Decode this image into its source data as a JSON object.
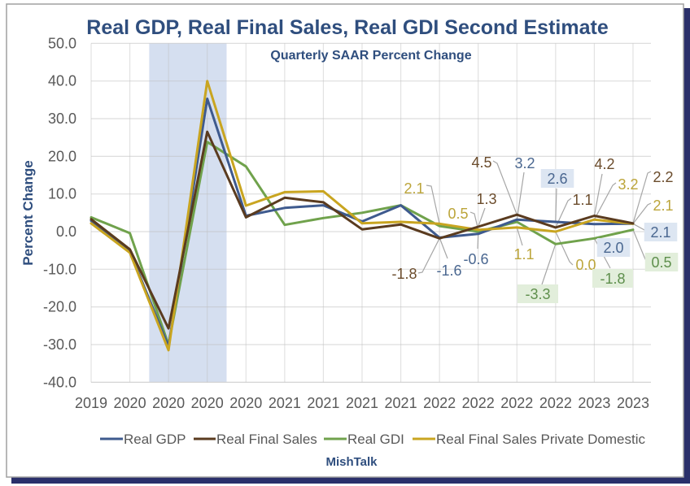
{
  "chart_data": {
    "type": "line",
    "title": "Real GDP, Real Final Sales, Real GDI Second Estimate",
    "subtitle": "Quarterly SAAR Percent Change",
    "xlabel": "",
    "ylabel": "Percent Change",
    "ylim": [
      -40,
      50
    ],
    "y_ticks": [
      50,
      40,
      30,
      20,
      10,
      0,
      -10,
      -20,
      -30,
      -40
    ],
    "y_tick_labels": [
      "50.0",
      "40.0",
      "30.0",
      "20.0",
      "10.0",
      "0.0",
      "-10.0",
      "-20.0",
      "-30.0",
      "-40.0"
    ],
    "grid": true,
    "legend_position": "bottom",
    "categories": [
      "2019",
      "2020",
      "2020",
      "2020",
      "2020",
      "2021",
      "2021",
      "2021",
      "2021",
      "2022",
      "2022",
      "2022",
      "2022",
      "2023",
      "2023"
    ],
    "shaded_region": {
      "from_index": 1.5,
      "to_index": 3.5,
      "color": "#d5dff0"
    },
    "series": [
      {
        "name": "Real GDP",
        "color": "#3e5a8e",
        "label_color": "#4a6790",
        "label_box": "#dde6f2",
        "values": [
          2.9,
          -5.3,
          -30.5,
          35.3,
          4.2,
          6.3,
          7.0,
          2.7,
          7.0,
          -1.6,
          -0.6,
          3.2,
          2.6,
          2.0,
          2.1
        ]
      },
      {
        "name": "Real Final Sales",
        "color": "#5a3b1f",
        "label_color": "#6b4c2c",
        "label_box": "#f1e9df",
        "values": [
          3.3,
          -4.7,
          -25.7,
          26.5,
          3.8,
          9.0,
          7.8,
          0.6,
          1.9,
          -1.8,
          1.3,
          4.5,
          1.1,
          4.2,
          2.2
        ]
      },
      {
        "name": "Real GDI",
        "color": "#70a24c",
        "label_color": "#5e8f4c",
        "label_box": "#e2eedb",
        "values": [
          3.8,
          -0.4,
          -30.0,
          23.8,
          17.3,
          1.8,
          3.6,
          5.0,
          7.0,
          1.5,
          0.0,
          2.6,
          -3.3,
          -1.8,
          0.5
        ]
      },
      {
        "name": "Real Final Sales Private Domestic",
        "color": "#c9a520",
        "label_color": "#bca53a",
        "label_box": "#f6f1d8",
        "values": [
          2.2,
          -5.6,
          -31.5,
          40.0,
          6.9,
          10.5,
          10.7,
          2.2,
          2.6,
          2.1,
          0.5,
          1.1,
          0.0,
          3.2,
          2.1
        ]
      }
    ],
    "data_labels": [
      {
        "series": 3,
        "index": 9,
        "text": "2.1"
      },
      {
        "series": 1,
        "index": 9,
        "text": "-1.8"
      },
      {
        "series": 0,
        "index": 9,
        "text": "-1.6"
      },
      {
        "series": 3,
        "index": 10,
        "text": "0.5"
      },
      {
        "series": 1,
        "index": 10,
        "text": "1.3"
      },
      {
        "series": 0,
        "index": 10,
        "text": "-0.6"
      },
      {
        "series": 1,
        "index": 11,
        "text": "4.5"
      },
      {
        "series": 0,
        "index": 11,
        "text": "3.2"
      },
      {
        "series": 3,
        "index": 11,
        "text": "1.1"
      },
      {
        "series": 0,
        "index": 12,
        "text": "2.6"
      },
      {
        "series": 1,
        "index": 12,
        "text": "1.1"
      },
      {
        "series": 3,
        "index": 12,
        "text": "0.0"
      },
      {
        "series": 2,
        "index": 12,
        "text": "-3.3"
      },
      {
        "series": 1,
        "index": 13,
        "text": "4.2"
      },
      {
        "series": 3,
        "index": 13,
        "text": "3.2"
      },
      {
        "series": 0,
        "index": 13,
        "text": "2.0"
      },
      {
        "series": 2,
        "index": 13,
        "text": "-1.8"
      },
      {
        "series": 1,
        "index": 14,
        "text": "2.2"
      },
      {
        "series": 3,
        "index": 14,
        "text": "2.1"
      },
      {
        "series": 0,
        "index": 14,
        "text": "2.1"
      },
      {
        "series": 2,
        "index": 14,
        "text": "0.5"
      }
    ],
    "source": "MishTalk"
  }
}
